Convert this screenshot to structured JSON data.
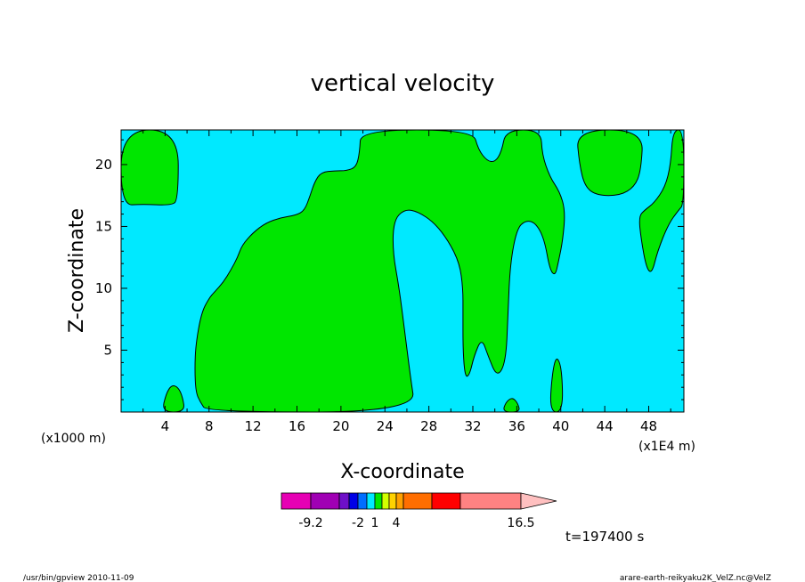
{
  "chart_data": {
    "type": "heatmap",
    "title": "vertical velocity",
    "xlabel": "X-coordinate",
    "ylabel": "Z-coordinate",
    "x_unit_left": "(x1000 m)",
    "x_unit_right": "(x1E4 m)",
    "xlim": [
      0,
      51.2
    ],
    "ylim": [
      0,
      22.8
    ],
    "xticks": [
      4,
      8,
      12,
      16,
      20,
      24,
      28,
      32,
      36,
      40,
      44,
      48
    ],
    "yticks": [
      5,
      10,
      15,
      20
    ],
    "fill_colors": {
      "low": "#00e9ff",
      "high": "#00e600"
    },
    "high_regions": [
      [
        [
          0,
          16.7
        ],
        [
          2,
          16.8
        ],
        [
          4.5,
          16.7
        ],
        [
          5.2,
          17.1
        ],
        [
          5.2,
          22.8
        ],
        [
          0,
          22.8
        ]
      ],
      [
        [
          3.7,
          0
        ],
        [
          4.1,
          1.5
        ],
        [
          4.6,
          2.2
        ],
        [
          5.2,
          2.0
        ],
        [
          5.6,
          1.2
        ],
        [
          5.8,
          0
        ]
      ],
      [
        [
          7.8,
          0
        ],
        [
          7.2,
          0.8
        ],
        [
          6.8,
          1.6
        ],
        [
          6.7,
          3.5
        ],
        [
          6.8,
          5.5
        ],
        [
          7.3,
          8
        ],
        [
          8,
          9.2
        ],
        [
          8.5,
          9.7
        ],
        [
          9.3,
          10.5
        ],
        [
          10,
          11.5
        ],
        [
          10.6,
          12.5
        ],
        [
          11,
          13.5
        ],
        [
          12,
          14.5
        ],
        [
          13.2,
          15.3
        ],
        [
          14.5,
          15.7
        ],
        [
          15.9,
          15.9
        ],
        [
          16.7,
          16.3
        ],
        [
          17.2,
          17.5
        ],
        [
          17.6,
          18.6
        ],
        [
          18.2,
          19.4
        ],
        [
          19.5,
          19.5
        ],
        [
          20.5,
          19.5
        ],
        [
          21.4,
          19.8
        ],
        [
          21.7,
          21
        ],
        [
          21.8,
          22.8
        ],
        [
          32,
          22.8
        ],
        [
          32.5,
          21.2
        ],
        [
          33.3,
          20.3
        ],
        [
          34,
          20.2
        ],
        [
          34.6,
          21
        ],
        [
          35,
          22.8
        ],
        [
          38.2,
          22.8
        ],
        [
          38.3,
          20.8
        ],
        [
          39,
          19
        ],
        [
          39.9,
          17.8
        ],
        [
          40.4,
          16.3
        ],
        [
          40.2,
          14
        ],
        [
          39.8,
          12.2
        ],
        [
          39.5,
          11
        ],
        [
          39,
          11.5
        ],
        [
          38.5,
          14
        ],
        [
          37.7,
          15.3
        ],
        [
          36.8,
          15.5
        ],
        [
          36,
          14.8
        ],
        [
          35.4,
          12
        ],
        [
          35.2,
          8
        ],
        [
          35,
          4
        ],
        [
          34.2,
          2.8
        ],
        [
          33.4,
          4.5
        ],
        [
          32.8,
          6
        ],
        [
          32.1,
          4.5
        ],
        [
          31.7,
          3
        ],
        [
          31.3,
          2.8
        ],
        [
          31.1,
          5
        ],
        [
          31.1,
          8
        ],
        [
          31.1,
          10
        ],
        [
          30.8,
          12
        ],
        [
          29.8,
          13.8
        ],
        [
          28.5,
          15.3
        ],
        [
          27,
          16.2
        ],
        [
          25.8,
          16.4
        ],
        [
          24.8,
          15.5
        ],
        [
          24.7,
          13
        ],
        [
          25.3,
          10
        ],
        [
          25.8,
          6.5
        ],
        [
          26.3,
          3
        ],
        [
          26.8,
          0
        ]
      ],
      [
        [
          34.7,
          0
        ],
        [
          35,
          0.8
        ],
        [
          35.6,
          1.2
        ],
        [
          36.1,
          0.7
        ],
        [
          36.3,
          0
        ]
      ],
      [
        [
          39,
          0
        ],
        [
          39.2,
          3
        ],
        [
          39.6,
          4.6
        ],
        [
          40.1,
          3.5
        ],
        [
          40.2,
          0
        ]
      ],
      [
        [
          41.4,
          22.8
        ],
        [
          41.7,
          20
        ],
        [
          42.2,
          18.2
        ],
        [
          43.3,
          17.5
        ],
        [
          45.4,
          17.5
        ],
        [
          46.7,
          18.2
        ],
        [
          47.3,
          19.5
        ],
        [
          47.5,
          22.8
        ]
      ],
      [
        [
          51.2,
          16.8
        ],
        [
          50.7,
          16.3
        ],
        [
          49.8,
          15.2
        ],
        [
          48.8,
          13
        ],
        [
          48.3,
          11.2
        ],
        [
          47.8,
          11.6
        ],
        [
          47.3,
          14
        ],
        [
          47.1,
          15.8
        ],
        [
          47.6,
          16.3
        ],
        [
          48.5,
          16.9
        ],
        [
          49.5,
          18.2
        ],
        [
          50,
          20
        ],
        [
          50.2,
          22.8
        ],
        [
          51.2,
          22.8
        ]
      ]
    ]
  },
  "colorbar": {
    "colors": [
      "#e600b4",
      "#a000b4",
      "#6e0fc8",
      "#0000e6",
      "#006eff",
      "#00e9ff",
      "#00e600",
      "#d2ff00",
      "#ffd200",
      "#ffa000",
      "#ff6e00",
      "#ff0000",
      "#ff8282",
      "#ffc0c0"
    ],
    "labels": [
      "-9.2",
      "-2",
      "1",
      "4",
      "16.5"
    ]
  },
  "time_label": "t=197400 s",
  "footer": {
    "left": "/usr/bin/gpview   2010-11-09",
    "right": "arare-earth-reikyaku2K_VelZ.nc@VelZ"
  }
}
